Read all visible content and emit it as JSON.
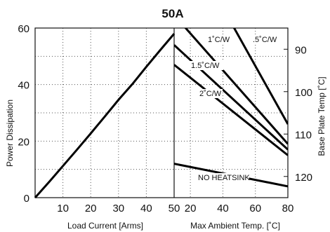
{
  "chart_data": {
    "type": "line",
    "title": "50A",
    "left_panel": {
      "xlabel": "Load Current  [Arms]",
      "ylabel": "Power Dissipation",
      "xlim": [
        0,
        50
      ],
      "ylim": [
        0,
        60
      ],
      "x_ticks": [
        10,
        20,
        30,
        40,
        50
      ],
      "y_ticks": [
        0,
        20,
        40,
        60
      ],
      "grid": true,
      "series": [
        {
          "x": [
            0,
            5,
            10,
            15,
            20,
            25,
            30,
            35,
            40,
            45,
            50
          ],
          "y": [
            0,
            5.5,
            11.2,
            16.9,
            22.7,
            28.6,
            34.6,
            40.2,
            46.3,
            52.2,
            58
          ]
        }
      ]
    },
    "right_panel": {
      "xlabel": "Max Ambient Temp. [˚C]",
      "y2label": "Base Plate Temp [˚C]",
      "xlim": [
        10,
        80
      ],
      "x_tick_labels": [
        "50",
        "20",
        "40",
        "60",
        "80"
      ],
      "x_ticks": [
        20,
        40,
        60,
        80
      ],
      "y2_ticks": [
        90,
        100,
        110,
        120
      ],
      "y2_range_at_left_axis_top_bottom": [
        85,
        125
      ],
      "grid": true,
      "series": [
        {
          "name": ".5˚C/W",
          "x": [
            45,
            80
          ],
          "y": [
            62,
            26
          ]
        },
        {
          "name": "1˚C/W",
          "x": [
            14,
            80
          ],
          "y": [
            62,
            19
          ]
        },
        {
          "name": "1.5˚C/W",
          "x": [
            10,
            80
          ],
          "y": [
            54,
            17
          ]
        },
        {
          "name": "2˚C/W",
          "x": [
            10,
            80
          ],
          "y": [
            47,
            15
          ]
        },
        {
          "name": "NO HEATSINK",
          "x": [
            10,
            80
          ],
          "y": [
            12,
            4
          ]
        }
      ]
    }
  }
}
